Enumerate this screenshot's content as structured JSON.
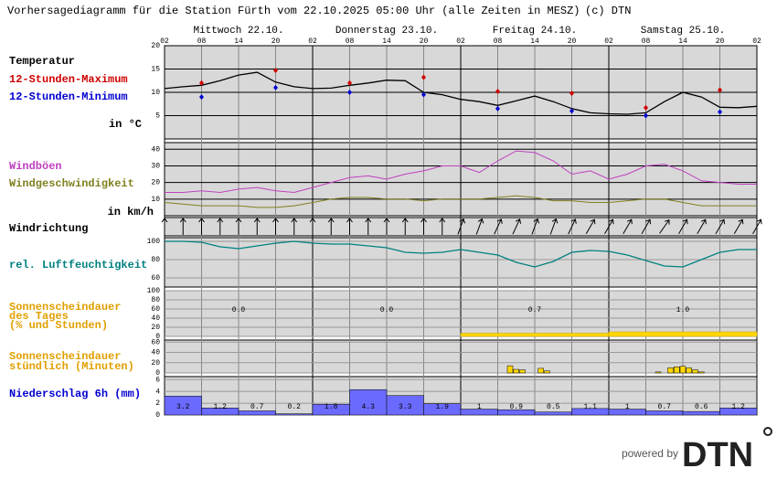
{
  "title": "Vorhersagediagramm für die Station Fürth vom 22.10.2025 05:00 Uhr (alle Zeiten in MESZ)",
  "copyright": "(c) DTN",
  "days": [
    "Mittwoch 22.10.",
    "Donnerstag 23.10.",
    "Freitag 24.10.",
    "Samstag 25.10."
  ],
  "xlim": [
    0,
    96
  ],
  "xticks": [
    {
      "value": 0,
      "label": "02"
    },
    {
      "value": 6,
      "label": "08"
    },
    {
      "value": 12,
      "label": "14"
    },
    {
      "value": 18,
      "label": "20"
    },
    {
      "value": 24,
      "label": "02"
    },
    {
      "value": 30,
      "label": "08"
    },
    {
      "value": 36,
      "label": "14"
    },
    {
      "value": 42,
      "label": "20"
    },
    {
      "value": 48,
      "label": "02"
    },
    {
      "value": 54,
      "label": "08"
    },
    {
      "value": 60,
      "label": "14"
    },
    {
      "value": 66,
      "label": "20"
    },
    {
      "value": 72,
      "label": "02"
    },
    {
      "value": 78,
      "label": "08"
    },
    {
      "value": 84,
      "label": "14"
    },
    {
      "value": 90,
      "label": "20"
    },
    {
      "value": 96,
      "label": "02"
    }
  ],
  "chart_data": [
    {
      "type": "line",
      "title": "Temperatur",
      "unit_label": "in °C",
      "ylim": [
        0,
        20
      ],
      "yticks": [
        5,
        10,
        15,
        20
      ],
      "color": "#000000",
      "x": [
        0,
        3,
        6,
        9,
        12,
        15,
        18,
        21,
        24,
        27,
        30,
        33,
        36,
        39,
        42,
        45,
        48,
        51,
        54,
        57,
        60,
        63,
        66,
        69,
        72,
        75,
        78,
        81,
        84,
        87,
        90,
        93,
        96
      ],
      "values": [
        10.8,
        11.2,
        11.5,
        12.5,
        13.7,
        14.3,
        12.2,
        11.2,
        10.8,
        10.9,
        11.5,
        12,
        12.6,
        12.5,
        10,
        9.5,
        8.5,
        8,
        7.2,
        8.2,
        9.2,
        8,
        6.5,
        5.6,
        5.4,
        5.3,
        5.6,
        8,
        10,
        9,
        6.8,
        6.7,
        7
      ],
      "series": [
        {
          "name": "12-Stunden-Maximum",
          "color": "#d00000",
          "x": [
            6,
            18,
            30,
            42,
            54,
            66,
            78,
            90
          ],
          "values": [
            12,
            14.7,
            12,
            13.2,
            10.2,
            9.8,
            6.7,
            10.5
          ]
        },
        {
          "name": "12-Stunden-Minimum",
          "color": "#0000d0",
          "x": [
            6,
            18,
            30,
            42,
            54,
            66,
            78,
            90
          ],
          "values": [
            9,
            11,
            10,
            9.5,
            6.5,
            6,
            5,
            5.8
          ]
        }
      ]
    },
    {
      "type": "line",
      "unit_label": "in km/h",
      "ylim": [
        0,
        44
      ],
      "yticks": [
        10,
        20,
        30,
        40
      ],
      "x": [
        0,
        3,
        6,
        9,
        12,
        15,
        18,
        21,
        24,
        27,
        30,
        33,
        36,
        39,
        42,
        45,
        48,
        51,
        54,
        57,
        60,
        63,
        66,
        69,
        72,
        75,
        78,
        81,
        84,
        87,
        90,
        93,
        96
      ],
      "series": [
        {
          "name": "Windböen",
          "color": "#c040c0",
          "values": [
            14,
            14,
            15,
            14,
            16,
            17,
            15,
            14,
            17,
            20,
            23,
            24,
            22,
            25,
            27,
            30,
            30,
            26,
            33,
            39,
            38,
            33,
            25,
            27,
            22,
            25,
            30,
            31,
            27,
            21,
            20,
            19,
            19
          ]
        },
        {
          "name": "Windgeschwindigkeit",
          "color": "#808020",
          "values": [
            8,
            7,
            6,
            6,
            6,
            5,
            5,
            6,
            8,
            10,
            11,
            11,
            10,
            10,
            9,
            10,
            10,
            10,
            11,
            12,
            11,
            9,
            9,
            8,
            8,
            9,
            10,
            10,
            8,
            6,
            6,
            6,
            6
          ]
        }
      ]
    },
    {
      "type": "arrows",
      "title": "Windrichtung",
      "x": [
        0,
        3,
        6,
        9,
        12,
        15,
        18,
        21,
        24,
        27,
        30,
        33,
        36,
        39,
        42,
        45,
        48,
        51,
        54,
        57,
        60,
        63,
        66,
        69,
        72,
        75,
        78,
        81,
        84,
        87,
        90,
        93,
        96
      ],
      "values": [
        0,
        0,
        0,
        0,
        0,
        0,
        0,
        0,
        0,
        0,
        0,
        0,
        0,
        0,
        0,
        0,
        20,
        20,
        25,
        25,
        20,
        20,
        25,
        30,
        30,
        30,
        30,
        35,
        30,
        30,
        30,
        30,
        30
      ]
    },
    {
      "type": "line",
      "title": "rel. Luftfeuchtigkeit",
      "color": "#008080",
      "ylim": [
        50,
        104
      ],
      "yticks": [
        60,
        80,
        100
      ],
      "x": [
        0,
        3,
        6,
        9,
        12,
        15,
        18,
        21,
        24,
        27,
        30,
        33,
        36,
        39,
        42,
        45,
        48,
        51,
        54,
        57,
        60,
        63,
        66,
        69,
        72,
        75,
        78,
        81,
        84,
        87,
        90,
        93,
        96
      ],
      "values": [
        100,
        100,
        99,
        94,
        92,
        95,
        98,
        100,
        98,
        97,
        97,
        95,
        93,
        88,
        87,
        88,
        91,
        88,
        85,
        77,
        72,
        78,
        88,
        90,
        89,
        85,
        79,
        73,
        72,
        80,
        88,
        91,
        91
      ]
    },
    {
      "type": "bar",
      "title": [
        "Sonnenscheindauer",
        "des Tages",
        "(% und Stunden)"
      ],
      "color": "#ffd700",
      "ylim": [
        0,
        100
      ],
      "yticks": [
        0,
        20,
        40,
        60,
        80,
        100
      ],
      "values": [
        0,
        0,
        7,
        10
      ],
      "hours": [
        0,
        0,
        0.7,
        1
      ],
      "hours_labels": [
        "0.0",
        "0.0",
        "0.7",
        "1.0"
      ]
    },
    {
      "type": "bar",
      "title": [
        "Sonnenscheindauer",
        "stündlich (Minuten)"
      ],
      "color": "#ffd700",
      "ylim": [
        0,
        64
      ],
      "yticks": [
        0,
        20,
        40,
        60
      ],
      "x": [
        56,
        57,
        58,
        61,
        62,
        80,
        82,
        83,
        84,
        85,
        86,
        87
      ],
      "values": [
        14,
        7,
        6,
        9,
        4,
        2,
        10,
        12,
        13,
        10,
        6,
        2
      ]
    },
    {
      "type": "bar",
      "title": "Niederschlag 6h (mm)",
      "color": "#6a6aff",
      "ylim": [
        0,
        6.5
      ],
      "yticks": [
        0,
        2,
        4,
        6
      ],
      "values": [
        3.2,
        1.2,
        0.7,
        0.2,
        1.8,
        4.3,
        3.3,
        1.9,
        1,
        0.9,
        0.5,
        1.1,
        1,
        0.7,
        0.6,
        1.2
      ]
    }
  ],
  "footer": {
    "powered_by": "powered by",
    "logo": "DTN"
  }
}
